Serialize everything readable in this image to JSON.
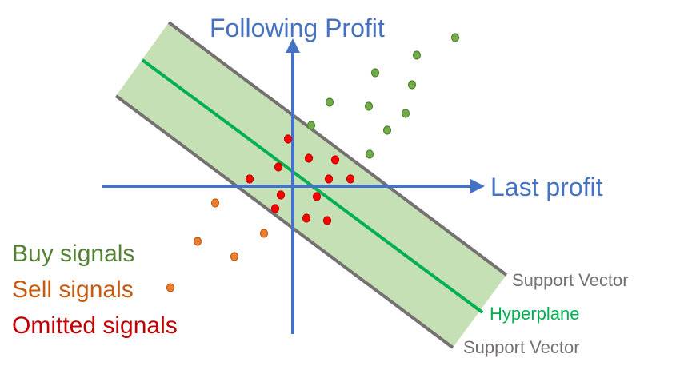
{
  "axes": {
    "y_label": "Following Profit",
    "x_label": "Last profit"
  },
  "lines": {
    "support_vector_upper": "Support Vector",
    "support_vector_lower": "Support Vector",
    "hyperplane": "Hyperplane"
  },
  "legend": {
    "buy": "Buy signals",
    "sell": "Sell signals",
    "omitted": "Omitted signals"
  },
  "colors": {
    "axis": "#4472c4",
    "band_fill": "#c5e0b4",
    "support_vector": "#767171",
    "hyperplane": "#00b050",
    "buy": "#70ad47",
    "buy_outline": "#548235",
    "sell": "#ed7d31",
    "sell_outline": "#c55a11",
    "omitted": "#ff0000",
    "omitted_outline": "#c00000",
    "buy_text": "#548235",
    "sell_text": "#c55a11",
    "omitted_text": "#c00000"
  }
}
